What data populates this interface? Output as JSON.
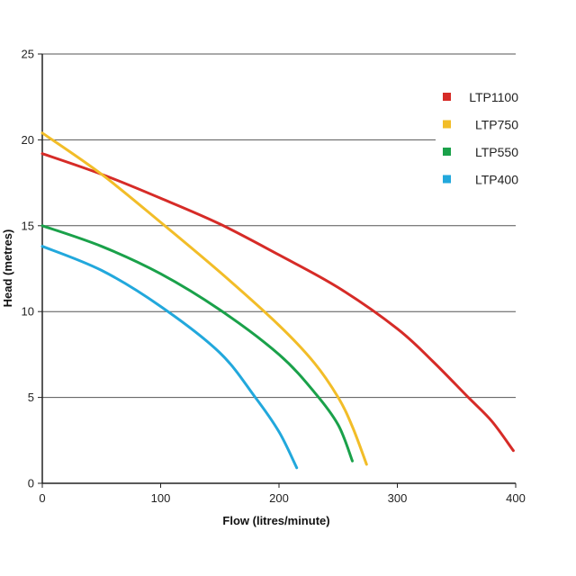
{
  "chart_data": {
    "type": "line",
    "title": "",
    "xlabel": "Flow (litres/minute)",
    "ylabel": "Head (metres)",
    "xlim": [
      0,
      400
    ],
    "ylim": [
      0,
      25
    ],
    "xticks": [
      0,
      100,
      200,
      300,
      400
    ],
    "yticks": [
      0,
      5,
      10,
      15,
      20,
      25
    ],
    "grid": "horizontal",
    "legend_position": "top-right",
    "series": [
      {
        "name": "LTP1100",
        "color": "#d62b27",
        "points": [
          [
            0,
            19.2
          ],
          [
            50,
            18.0
          ],
          [
            100,
            16.6
          ],
          [
            150,
            15.1
          ],
          [
            200,
            13.3
          ],
          [
            250,
            11.4
          ],
          [
            300,
            9.0
          ],
          [
            330,
            7.1
          ],
          [
            360,
            5.0
          ],
          [
            380,
            3.6
          ],
          [
            398,
            1.9
          ]
        ]
      },
      {
        "name": "LTP750",
        "color": "#f2bd28",
        "points": [
          [
            0,
            20.4
          ],
          [
            50,
            18.0
          ],
          [
            100,
            15.2
          ],
          [
            150,
            12.3
          ],
          [
            200,
            9.2
          ],
          [
            230,
            7.0
          ],
          [
            250,
            5.0
          ],
          [
            262,
            3.3
          ],
          [
            274,
            1.1
          ]
        ]
      },
      {
        "name": "LTP550",
        "color": "#1aa14a",
        "points": [
          [
            0,
            15.0
          ],
          [
            50,
            13.8
          ],
          [
            100,
            12.2
          ],
          [
            150,
            10.1
          ],
          [
            200,
            7.5
          ],
          [
            230,
            5.3
          ],
          [
            250,
            3.4
          ],
          [
            262,
            1.3
          ]
        ]
      },
      {
        "name": "LTP400",
        "color": "#22a8dc",
        "points": [
          [
            0,
            13.8
          ],
          [
            50,
            12.4
          ],
          [
            100,
            10.3
          ],
          [
            150,
            7.6
          ],
          [
            180,
            5.0
          ],
          [
            200,
            3.0
          ],
          [
            215,
            0.9
          ]
        ]
      }
    ]
  }
}
